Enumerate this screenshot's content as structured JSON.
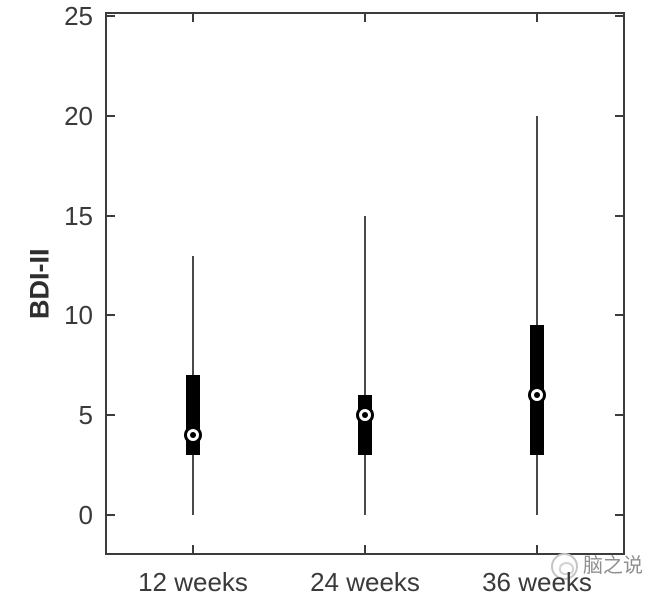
{
  "chart_data": {
    "type": "boxplot",
    "title": "",
    "xlabel": "",
    "ylabel": "BDI-II",
    "categories": [
      "12 weeks",
      "24 weeks",
      "36 weeks"
    ],
    "series": [
      {
        "category": "12 weeks",
        "min": 0,
        "q1": 3,
        "median": 4,
        "q3": 7,
        "max": 13
      },
      {
        "category": "24 weeks",
        "min": 0,
        "q1": 3,
        "median": 5,
        "q3": 6,
        "max": 15
      },
      {
        "category": "36 weeks",
        "min": 0,
        "q1": 3,
        "median": 6,
        "q3": 9.5,
        "max": 20
      }
    ],
    "yticks": [
      0,
      5,
      10,
      15,
      20,
      25
    ],
    "ylim": [
      -1.9,
      25.1
    ],
    "grid": false,
    "legend": null,
    "median_marker": "circled-dot",
    "colors": {
      "box": "#000000",
      "whisker": "#4a4a4a",
      "axis": "#3c3c3c",
      "tick_label": "#3a3a3a",
      "ylabel": "#2e2e2e",
      "median_marker_fill": "#ffffff",
      "median_marker_stroke": "#000000"
    }
  },
  "watermark": {
    "text": "脑之说",
    "logo": "brain-logo",
    "color": "#8f8f8f"
  }
}
